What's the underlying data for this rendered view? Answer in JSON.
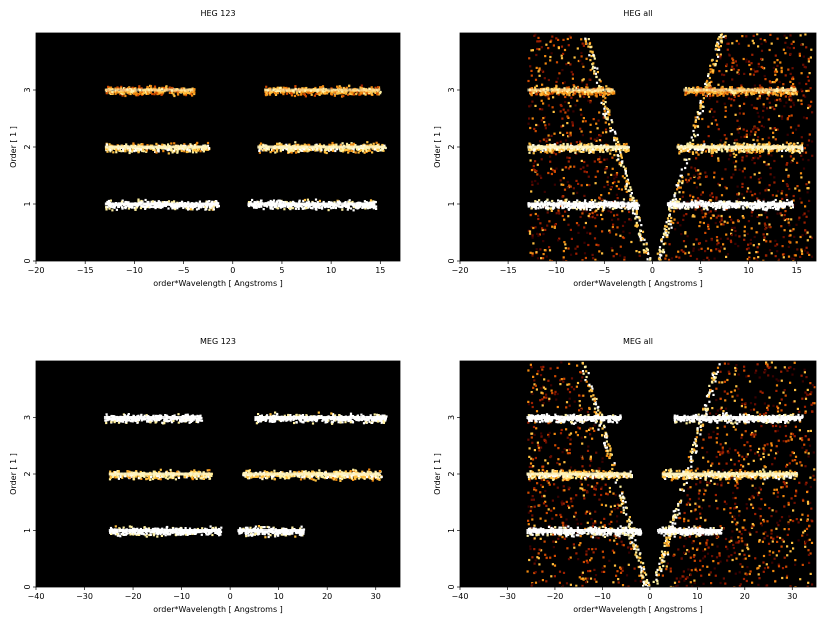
{
  "chart_data": [
    {
      "type": "heatmap",
      "title": "HEG 123",
      "xlabel": "order*Wavelength [ Angstroms ]",
      "ylabel": "Order [ 1 ]",
      "xlim": [
        -20,
        17
      ],
      "ylim": [
        0,
        4
      ],
      "xticks": [
        -20,
        -15,
        -10,
        -5,
        0,
        5,
        10,
        15
      ],
      "yticks": [
        0,
        1,
        2,
        3
      ],
      "bands": [
        {
          "order": 1,
          "segments": [
            [
              -13,
              -1.5
            ],
            [
              1.5,
              14.5
            ]
          ],
          "intensity": "high"
        },
        {
          "order": 2,
          "segments": [
            [
              -13,
              -2.5
            ],
            [
              2.5,
              15.5
            ]
          ],
          "intensity": "medium"
        },
        {
          "order": 3,
          "segments": [
            [
              -13,
              -4
            ],
            [
              3.2,
              15
            ]
          ],
          "intensity": "low"
        }
      ],
      "dispersion_wedge": false,
      "background": "#000000"
    },
    {
      "type": "heatmap",
      "title": "HEG all",
      "xlabel": "order*Wavelength [ Angstroms ]",
      "ylabel": "Order [ 1 ]",
      "xlim": [
        -20,
        17
      ],
      "ylim": [
        0,
        4
      ],
      "xticks": [
        -20,
        -15,
        -10,
        -5,
        0,
        5,
        10,
        15
      ],
      "yticks": [
        0,
        1,
        2,
        3
      ],
      "bands": [
        {
          "order": 1,
          "segments": [
            [
              -13,
              -1.5
            ],
            [
              1.5,
              14.5
            ]
          ],
          "intensity": "high"
        },
        {
          "order": 2,
          "segments": [
            [
              -13,
              -2.5
            ],
            [
              2.5,
              15.5
            ]
          ],
          "intensity": "medium"
        },
        {
          "order": 3,
          "segments": [
            [
              -13,
              -4
            ],
            [
              3.2,
              15
            ]
          ],
          "intensity": "low"
        }
      ],
      "dispersion_wedge": true,
      "background": "#000000"
    },
    {
      "type": "heatmap",
      "title": "MEG 123",
      "xlabel": "order*Wavelength [ Angstroms ]",
      "ylabel": "Order [ 1 ]",
      "xlim": [
        -40,
        35
      ],
      "ylim": [
        0,
        4
      ],
      "xticks": [
        -40,
        -30,
        -20,
        -10,
        0,
        10,
        20,
        30
      ],
      "yticks": [
        0,
        1,
        2,
        3
      ],
      "bands": [
        {
          "order": 1,
          "segments": [
            [
              -25,
              -2
            ],
            [
              1.5,
              15
            ]
          ],
          "intensity": "high"
        },
        {
          "order": 2,
          "segments": [
            [
              -25,
              -4
            ],
            [
              2.5,
              31
            ]
          ],
          "intensity": "medium"
        },
        {
          "order": 3,
          "segments": [
            [
              -26,
              -6
            ],
            [
              5,
              32
            ]
          ],
          "intensity": "high"
        }
      ],
      "dispersion_wedge": false,
      "background": "#000000"
    },
    {
      "type": "heatmap",
      "title": "MEG all",
      "xlabel": "order*Wavelength [ Angstroms ]",
      "ylabel": "Order [ 1 ]",
      "xlim": [
        -40,
        35
      ],
      "ylim": [
        0,
        4
      ],
      "xticks": [
        -40,
        -30,
        -20,
        -10,
        0,
        10,
        20,
        30
      ],
      "yticks": [
        0,
        1,
        2,
        3
      ],
      "bands": [
        {
          "order": 1,
          "segments": [
            [
              -26,
              -2
            ],
            [
              1.5,
              15
            ]
          ],
          "intensity": "high"
        },
        {
          "order": 2,
          "segments": [
            [
              -26,
              -4
            ],
            [
              2.5,
              31
            ]
          ],
          "intensity": "medium"
        },
        {
          "order": 3,
          "segments": [
            [
              -26,
              -6
            ],
            [
              5,
              32
            ]
          ],
          "intensity": "high"
        }
      ],
      "dispersion_wedge": true,
      "background": "#000000"
    }
  ]
}
